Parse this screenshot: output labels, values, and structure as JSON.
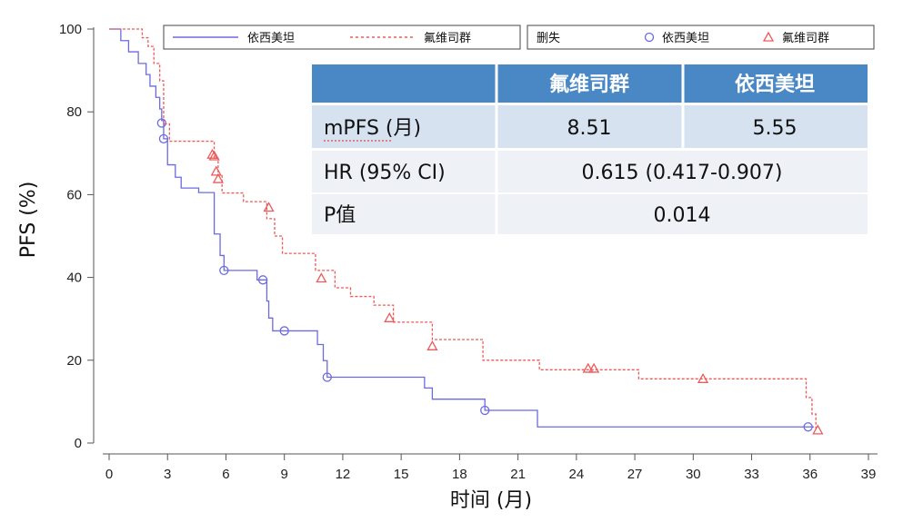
{
  "chart_data": {
    "type": "line",
    "subtype": "kaplan-meier-step",
    "title": "",
    "xlabel": "时间 (月)",
    "ylabel": "PFS (%)",
    "xlim": [
      0,
      39
    ],
    "ylim": [
      0,
      100
    ],
    "xticks": [
      0,
      3,
      6,
      9,
      12,
      15,
      18,
      21,
      24,
      27,
      30,
      33,
      36,
      39
    ],
    "yticks": [
      0,
      20,
      40,
      60,
      80,
      100
    ],
    "grid": false,
    "legend": {
      "line_entries": [
        "依西美坦",
        "氟维司群"
      ],
      "censor_title": "删失",
      "censor_entries": [
        "依西美坦",
        "氟维司群"
      ],
      "placement": "top"
    },
    "series": [
      {
        "name": "依西美坦",
        "color": "#6b6be0",
        "line_style": "solid",
        "censor_marker": "circle",
        "x": [
          0,
          0.6,
          1.0,
          1.5,
          1.9,
          2.1,
          2.4,
          2.6,
          2.7,
          2.8,
          3.0,
          3.4,
          3.7,
          4.6,
          5.4,
          5.7,
          5.9,
          7.6,
          8.1,
          8.2,
          8.4,
          10.7,
          11.0,
          11.2,
          16.2,
          16.6,
          19.3,
          22.0,
          36.0,
          36.2
        ],
        "y": [
          100,
          97.2,
          94.5,
          91.7,
          89.0,
          86.2,
          83.5,
          80.7,
          77.9,
          73.5,
          67.2,
          64.2,
          61.6,
          60.5,
          50.5,
          45.3,
          41.7,
          39.4,
          34.3,
          30.2,
          27.1,
          23.8,
          19.9,
          15.9,
          13.3,
          10.6,
          7.9,
          3.9,
          3.9,
          3.9
        ],
        "censored": [
          {
            "x": 2.7,
            "y": 77.3
          },
          {
            "x": 2.8,
            "y": 73.5
          },
          {
            "x": 5.9,
            "y": 41.7
          },
          {
            "x": 7.9,
            "y": 39.4
          },
          {
            "x": 9.0,
            "y": 27.1
          },
          {
            "x": 11.2,
            "y": 15.9
          },
          {
            "x": 19.3,
            "y": 7.9
          },
          {
            "x": 35.9,
            "y": 3.9
          }
        ]
      },
      {
        "name": "氟维司群",
        "color": "#ee5a5a",
        "line_style": "dashed",
        "censor_marker": "triangle",
        "x": [
          0,
          1.7,
          2.0,
          2.3,
          2.6,
          2.8,
          3.1,
          5.4,
          5.6,
          5.8,
          6.9,
          8.1,
          8.5,
          8.9,
          10.6,
          11.6,
          12.4,
          13.6,
          14.6,
          16.6,
          19.2,
          22.1,
          27.2,
          31.0,
          35.8,
          36.1,
          36.3
        ],
        "y": [
          100,
          97.9,
          95.8,
          91.7,
          87.5,
          77.1,
          72.9,
          68.8,
          64.6,
          60.4,
          58.3,
          54.2,
          50.0,
          45.8,
          41.7,
          37.5,
          35.4,
          33.3,
          29.2,
          25.0,
          20.0,
          17.7,
          15.5,
          15.5,
          11.0,
          7.0,
          3.0
        ],
        "censored": [
          {
            "x": 5.3,
            "y": 69.7
          },
          {
            "x": 5.4,
            "y": 69.3
          },
          {
            "x": 5.5,
            "y": 65.6
          },
          {
            "x": 5.6,
            "y": 63.8
          },
          {
            "x": 8.2,
            "y": 56.9
          },
          {
            "x": 10.9,
            "y": 39.8
          },
          {
            "x": 14.4,
            "y": 30.2
          },
          {
            "x": 16.6,
            "y": 23.4
          },
          {
            "x": 24.6,
            "y": 18.0
          },
          {
            "x": 24.9,
            "y": 18.0
          },
          {
            "x": 30.5,
            "y": 15.5
          },
          {
            "x": 36.4,
            "y": 3.1
          }
        ]
      }
    ]
  },
  "summary_table": {
    "headers": [
      "",
      "氟维司群",
      "依西美坦"
    ],
    "rows": [
      [
        "mPFS (月)",
        "8.51",
        "5.55"
      ],
      [
        "HR (95% CI)",
        "0.615 (0.417-0.907)"
      ],
      [
        "P值",
        "0.014"
      ]
    ],
    "header_color": "#4a88c5",
    "row_color_a": "#d6e2ef",
    "row_color_b": "#eef2f7"
  }
}
